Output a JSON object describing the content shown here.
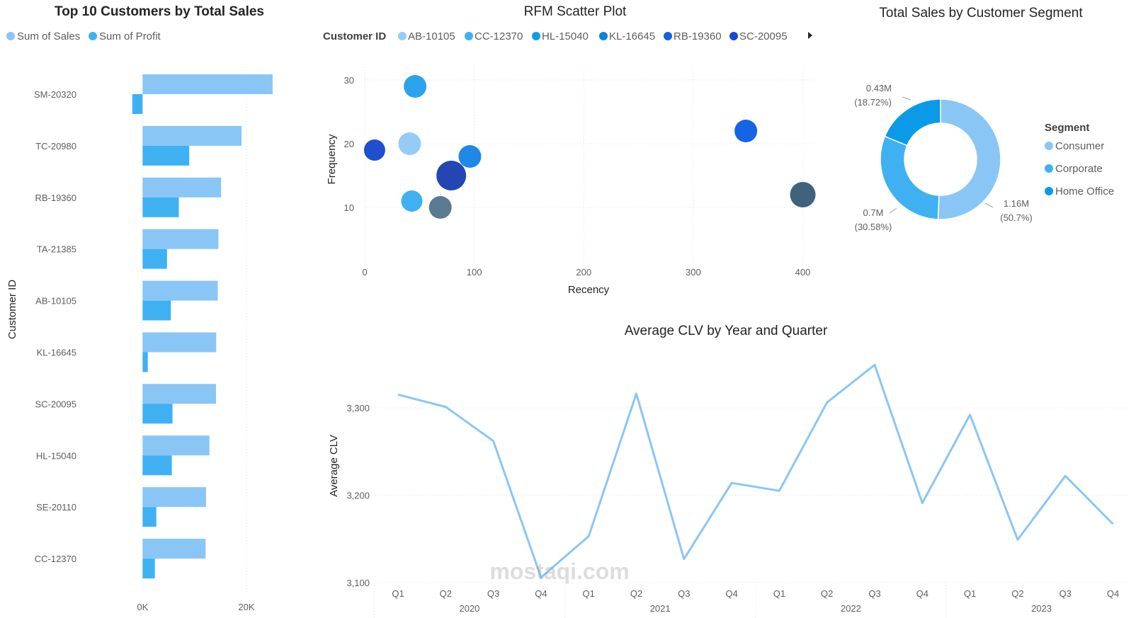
{
  "colors": {
    "sales": "#8ac6f5",
    "profit": "#3fb1f2",
    "line": "#8ac6f5",
    "grid": "#dcdcdc",
    "axis_text": "#605e5c",
    "consumer": "#8ac6f5",
    "corporate": "#3fb1f2",
    "home_office": "#0a9ae8"
  },
  "watermark": "mostaqi.com",
  "chart_data": [
    {
      "id": "top10",
      "type": "bar",
      "orientation": "horizontal",
      "title": "Top 10 Customers by Total Sales",
      "ylabel": "Customer ID",
      "categories": [
        "SM-20320",
        "TC-20980",
        "RB-19360",
        "TA-21385",
        "AB-10105",
        "KL-16645",
        "SC-20095",
        "HL-15040",
        "SE-20110",
        "CC-12370"
      ],
      "series": [
        {
          "name": "Sum of Sales",
          "values": [
            25043,
            19052,
            15117,
            14595,
            14473,
            14175,
            14142,
            12873,
            12210,
            12129
          ],
          "color": "#8ac6f5"
        },
        {
          "name": "Sum of Profit",
          "values": [
            -1980,
            8981,
            6977,
            4703,
            5445,
            1000,
            5758,
            5623,
            2650,
            2362
          ],
          "color": "#3fb1f2"
        }
      ],
      "xticks": [
        0,
        20000
      ],
      "xtick_labels": [
        "0K",
        "20K"
      ],
      "xlim": [
        -2500,
        26000
      ],
      "grid": true,
      "legend": "top-left"
    },
    {
      "id": "rfm",
      "type": "scatter",
      "title": "RFM Scatter Plot",
      "xlabel": "Recency",
      "ylabel": "Frequency",
      "legend_title": "Customer ID",
      "legend_entries": [
        {
          "name": "AB-10105",
          "color": "#94ccf6"
        },
        {
          "name": "CC-12370",
          "color": "#3fb1f2"
        },
        {
          "name": "HL-15040",
          "color": "#0f9de9"
        },
        {
          "name": "KL-16645",
          "color": "#0a84e0"
        },
        {
          "name": "RB-19360",
          "color": "#1363dc"
        },
        {
          "name": "SC-20095",
          "color": "#1748d2"
        }
      ],
      "points": [
        {
          "x": 46,
          "y": 29,
          "size": 16,
          "color": "#2aa3ec"
        },
        {
          "x": 41,
          "y": 20,
          "size": 16,
          "color": "#94ccf6"
        },
        {
          "x": 9,
          "y": 19,
          "size": 15,
          "color": "#1f4fce"
        },
        {
          "x": 96,
          "y": 18,
          "size": 16,
          "color": "#1f87e5"
        },
        {
          "x": 79,
          "y": 15,
          "size": 21,
          "color": "#2346b3"
        },
        {
          "x": 43,
          "y": 11,
          "size": 15,
          "color": "#3fb1f2"
        },
        {
          "x": 69,
          "y": 10,
          "size": 16,
          "color": "#5a7a92"
        },
        {
          "x": 348,
          "y": 22,
          "size": 16,
          "color": "#1464e6"
        },
        {
          "x": 400,
          "y": 12,
          "size": 18,
          "color": "#3f637c"
        }
      ],
      "xticks": [
        0,
        100,
        200,
        300,
        400
      ],
      "yticks": [
        10,
        20,
        30
      ],
      "xlim": [
        0,
        410
      ],
      "ylim": [
        0,
        32
      ],
      "grid": true
    },
    {
      "id": "segment",
      "type": "pie",
      "donut": true,
      "title": "Total Sales by Customer Segment",
      "legend_title": "Segment",
      "slices": [
        {
          "name": "Consumer",
          "value": 1.16,
          "label": "1.16M",
          "pct_label": "(50.7%)",
          "color": "#8ac6f5"
        },
        {
          "name": "Corporate",
          "value": 0.7,
          "label": "0.7M",
          "pct_label": "(30.58%)",
          "color": "#3fb1f2"
        },
        {
          "name": "Home Office",
          "value": 0.43,
          "label": "0.43M",
          "pct_label": "(18.72%)",
          "color": "#0a9ae8"
        }
      ],
      "legend": "right"
    },
    {
      "id": "clv",
      "type": "line",
      "title": "Average CLV by Year and Quarter",
      "ylabel": "Average CLV",
      "years": [
        "2020",
        "2021",
        "2022",
        "2023"
      ],
      "quarters": [
        "Q1",
        "Q2",
        "Q3",
        "Q4"
      ],
      "series": [
        {
          "values": [
            3315,
            3301,
            3262,
            3106,
            3153,
            3316,
            3127,
            3214,
            3205,
            3306,
            3349,
            3191,
            3292,
            3149,
            3222,
            3167
          ]
        }
      ],
      "yticks": [
        3100,
        3200,
        3300
      ],
      "ytick_labels": [
        "3,100",
        "3,200",
        "3,300"
      ],
      "ylim": [
        3100,
        3368
      ],
      "grid": true
    }
  ]
}
